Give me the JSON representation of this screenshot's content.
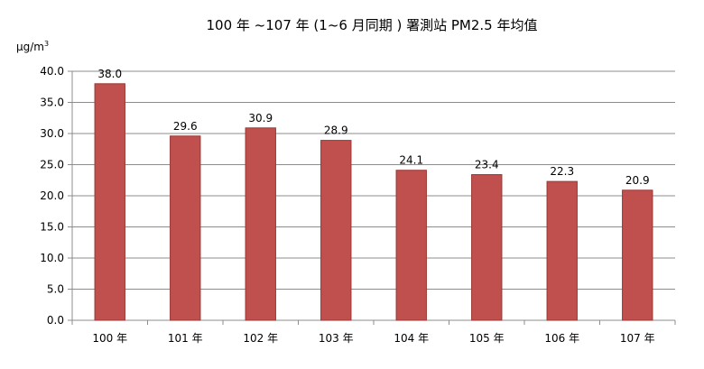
{
  "colors": {
    "bar_fill": "#c0504d",
    "bar_stroke": "#9b3835",
    "grid": "#8c8c8c",
    "axis": "#8c8c8c",
    "background": "#ffffff"
  },
  "chart_data": {
    "type": "bar",
    "title": "100 年 ~107 年 (1~6 月同期 ) 署測站 PM2.5 年均值",
    "unit": {
      "base": "μg/m",
      "superscript": "3"
    },
    "xlabel": "",
    "ylabel": "",
    "categories": [
      "100 年",
      "101 年",
      "102 年",
      "103 年",
      "104 年",
      "105 年",
      "106 年",
      "107 年"
    ],
    "values": [
      38.0,
      29.6,
      30.9,
      28.9,
      24.1,
      23.4,
      22.3,
      20.9
    ],
    "value_labels": [
      "38.0",
      "29.6",
      "30.9",
      "28.9",
      "24.1",
      "23.4",
      "22.3",
      "20.9"
    ],
    "ylim": [
      0,
      40
    ],
    "yticks": [
      "0.0",
      "5.0",
      "10.0",
      "15.0",
      "20.0",
      "25.0",
      "30.0",
      "35.0",
      "40.0"
    ],
    "grid": true,
    "legend": "none"
  }
}
